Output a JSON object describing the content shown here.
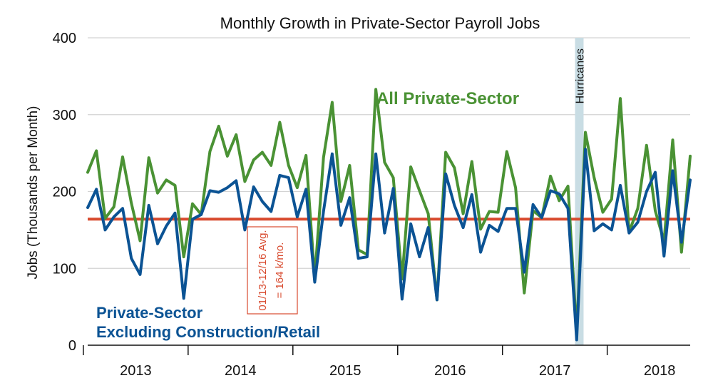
{
  "chart_data": {
    "type": "line",
    "title": "Monthly Growth in Private-Sector Payroll Jobs",
    "xlabel": "",
    "ylabel": "Jobs (Thousands per Month)",
    "ylim": [
      0,
      400
    ],
    "yticks": [
      0,
      100,
      200,
      300,
      400
    ],
    "x_start": "2013-01",
    "year_labels": [
      "2013",
      "2014",
      "2015",
      "2016",
      "2017",
      "2018"
    ],
    "grid": true,
    "series": [
      {
        "name": "All Private-Sector",
        "color": "#4a9234",
        "values": [
          225,
          253,
          165,
          180,
          245,
          185,
          136,
          244,
          198,
          215,
          208,
          115,
          184,
          170,
          252,
          285,
          246,
          274,
          213,
          241,
          251,
          234,
          290,
          234,
          205,
          247,
          87,
          244,
          316,
          187,
          234,
          124,
          118,
          333,
          238,
          218,
          86,
          232,
          201,
          171,
          59,
          251,
          231,
          171,
          239,
          151,
          174,
          173,
          252,
          205,
          68,
          175,
          166,
          220,
          188,
          207,
          15,
          277,
          218,
          173,
          190,
          321,
          147,
          178,
          260,
          175,
          135,
          267,
          121,
          246
        ]
      },
      {
        "name": "Private-Sector Excluding Construction/Retail",
        "color": "#0b5394",
        "values": [
          179,
          203,
          150,
          167,
          178,
          113,
          92,
          182,
          132,
          155,
          172,
          61,
          164,
          170,
          201,
          199,
          205,
          214,
          150,
          206,
          187,
          174,
          221,
          218,
          167,
          203,
          82,
          174,
          249,
          156,
          192,
          113,
          115,
          249,
          146,
          204,
          60,
          158,
          115,
          153,
          59,
          223,
          182,
          153,
          196,
          121,
          156,
          148,
          178,
          178,
          95,
          183,
          166,
          201,
          197,
          178,
          7,
          255,
          149,
          158,
          150,
          208,
          146,
          160,
          200,
          225,
          116,
          227,
          134,
          215
        ]
      }
    ],
    "reference_line": {
      "value": 164,
      "color": "#d84a2e",
      "label_lines": [
        "01/13-12/16 Avg.",
        "= 164 k/mo."
      ]
    },
    "shaded_band": {
      "label": "Hurricanes",
      "period": "2017-09",
      "color": "#c9dde4"
    },
    "annotations": {
      "green_label": "All Private-Sector",
      "blue_label_lines": [
        "Private-Sector",
        "Excluding Construction/Retail"
      ]
    }
  }
}
